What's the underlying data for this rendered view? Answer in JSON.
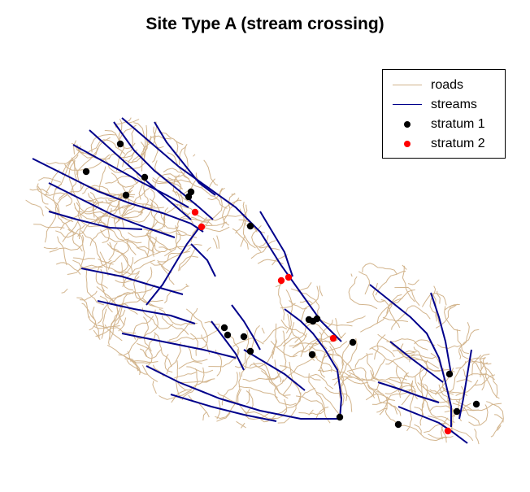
{
  "title": "Site Type A (stream crossing)",
  "legend": {
    "items": [
      {
        "label": "roads",
        "kind": "line",
        "color": "#d2b48c"
      },
      {
        "label": "streams",
        "kind": "line",
        "color": "#00008b"
      },
      {
        "label": "stratum 1",
        "kind": "point",
        "color": "#000000"
      },
      {
        "label": "stratum 2",
        "kind": "point",
        "color": "#ff0000"
      }
    ]
  },
  "colors": {
    "roads": "#d2b48c",
    "streams": "#00008b",
    "stratum_1": "#000000",
    "stratum_2": "#ff0000"
  }
}
